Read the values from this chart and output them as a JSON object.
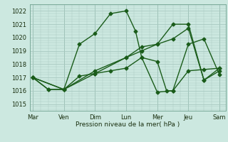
{
  "xlabel": "Pression niveau de la mer( hPa )",
  "ylim": [
    1014.5,
    1022.5
  ],
  "yticks": [
    1015,
    1016,
    1017,
    1018,
    1019,
    1020,
    1021,
    1022
  ],
  "xtick_labels": [
    "Mar",
    "Ven",
    "Dim",
    "Lun",
    "Mer",
    "Jeu",
    "Sam"
  ],
  "xtick_positions": [
    0,
    1,
    2,
    3,
    4,
    5,
    6
  ],
  "xlim": [
    -0.1,
    6.2
  ],
  "background_color": "#cce8e0",
  "grid_color": "#a8c8c0",
  "line_color": "#1a5c1a",
  "line1_x": [
    0,
    0.5,
    1.0,
    1.5,
    2.0,
    2.5,
    3.0,
    3.3,
    3.5,
    4.0,
    4.5,
    5.0,
    5.5,
    6.0
  ],
  "line1_y": [
    1017.0,
    1016.1,
    1016.1,
    1019.5,
    1020.3,
    1021.8,
    1022.0,
    1020.5,
    1018.5,
    1015.9,
    1016.0,
    1019.5,
    1019.9,
    1017.2
  ],
  "line2_x": [
    0,
    0.5,
    1.0,
    1.5,
    2.0,
    2.5,
    3.0,
    3.5,
    4.0,
    4.3,
    4.5,
    5.0,
    5.5,
    6.0
  ],
  "line2_y": [
    1017.0,
    1016.1,
    1016.1,
    1017.1,
    1017.3,
    1017.5,
    1017.7,
    1018.5,
    1018.2,
    1016.0,
    1016.0,
    1017.5,
    1017.6,
    1017.7
  ],
  "line3_x": [
    0,
    1.0,
    2.0,
    3.0,
    3.5,
    4.0,
    4.5,
    5.0,
    5.5,
    6.0
  ],
  "line3_y": [
    1017.0,
    1016.1,
    1017.5,
    1018.5,
    1019.3,
    1019.5,
    1019.9,
    1020.7,
    1016.8,
    1017.7
  ],
  "line4_x": [
    0,
    1.0,
    2.0,
    3.0,
    3.5,
    4.0,
    4.5,
    5.0,
    5.5,
    6.0
  ],
  "line4_y": [
    1017.0,
    1016.1,
    1017.3,
    1018.5,
    1019.0,
    1019.5,
    1021.0,
    1021.0,
    1016.8,
    1017.5
  ]
}
